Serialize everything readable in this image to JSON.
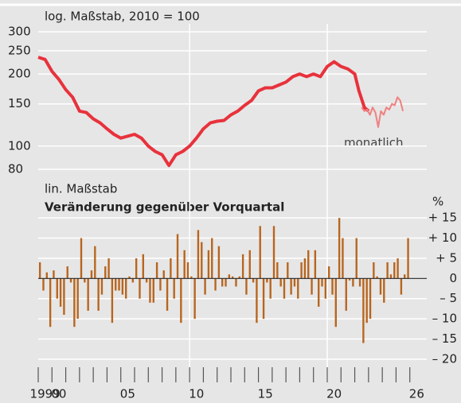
{
  "chart_data": [
    {
      "type": "line",
      "title": "log. Maßstab, 2010 = 100",
      "log": true,
      "grid": true,
      "ylim": [
        80,
        300
      ],
      "yticks": [
        300,
        250,
        200,
        150,
        100,
        80
      ],
      "xlim": [
        1999,
        2027
      ],
      "annotation": "monatlich",
      "series": [
        {
          "color": "#e8323c",
          "width": 4,
          "x": [
            1999,
            1999.5,
            2000,
            2000.5,
            2001,
            2001.5,
            2002,
            2002.5,
            2003,
            2003.5,
            2004,
            2004.5,
            2005,
            2005.5,
            2006,
            2006.5,
            2007,
            2007.5,
            2008,
            2008.5,
            2009,
            2009.5,
            2010,
            2010.5,
            2011,
            2011.5,
            2012,
            2012.5,
            2013,
            2013.5,
            2014,
            2014.5,
            2015,
            2015.5,
            2016,
            2016.5,
            2017,
            2017.5,
            2018,
            2018.5,
            2019,
            2019.5,
            2020,
            2020.5,
            2021,
            2021.5,
            2022,
            2022.3,
            2022.7,
            2023
          ],
          "values": [
            235,
            230,
            205,
            190,
            172,
            160,
            140,
            138,
            130,
            125,
            118,
            112,
            108,
            110,
            112,
            108,
            100,
            95,
            92,
            83,
            92,
            95,
            100,
            108,
            118,
            125,
            127,
            128,
            135,
            140,
            148,
            155,
            170,
            175,
            175,
            180,
            185,
            195,
            200,
            195,
            200,
            195,
            215,
            225,
            215,
            210,
            200,
            170,
            145,
            140
          ]
        },
        {
          "name": "monatlich",
          "color": "#f08080",
          "width": 2,
          "x": [
            2022.5,
            2022.7,
            2022.9,
            2023.1,
            2023.3,
            2023.5,
            2023.7,
            2023.9,
            2024.1,
            2024.3,
            2024.5,
            2024.7,
            2024.9,
            2025.1,
            2025.3,
            2025.5
          ],
          "values": [
            145,
            140,
            142,
            135,
            145,
            138,
            120,
            140,
            135,
            145,
            142,
            150,
            148,
            160,
            155,
            140
          ]
        }
      ]
    },
    {
      "type": "bar",
      "title": "Veränderung gegenüber Vorquartal",
      "subtitle": "lin. Maßstab",
      "unit": "%",
      "color": "#b8651e",
      "grid": true,
      "xlim": [
        1999,
        2027
      ],
      "ylim": [
        -22,
        17
      ],
      "yticks": [
        {
          "value": 15,
          "label": "+ 15"
        },
        {
          "value": 10,
          "label": "+ 10"
        },
        {
          "value": 5,
          "label": "+  5"
        },
        0,
        {
          "value": -5,
          "label": "–  5"
        },
        {
          "value": -10,
          "label": "– 10"
        },
        {
          "value": -15,
          "label": "– 15"
        },
        {
          "value": -20,
          "label": "– 20"
        }
      ],
      "xticks": [
        {
          "value": 1999.5,
          "label": "1999"
        },
        {
          "value": 2000.5,
          "label": "00"
        },
        {
          "value": 2005.5,
          "label": "05"
        },
        {
          "value": 2010.5,
          "label": "10"
        },
        {
          "value": 2015.5,
          "label": "15"
        },
        {
          "value": 2020.5,
          "label": "20"
        },
        {
          "value": 2026.5,
          "label": "26"
        }
      ],
      "xminor": [
        1999,
        2000,
        2001,
        2002,
        2003,
        2004,
        2005,
        2006,
        2007,
        2008,
        2009,
        2010,
        2011,
        2012,
        2013,
        2014,
        2015,
        2016,
        2017,
        2018,
        2019,
        2020,
        2021,
        2022,
        2023,
        2024,
        2025,
        2026
      ],
      "vgrid": [
        2010,
        2020
      ],
      "x": [
        1999.125,
        1999.375,
        1999.625,
        1999.875,
        2000.125,
        2000.375,
        2000.625,
        2000.875,
        2001.125,
        2001.375,
        2001.625,
        2001.875,
        2002.125,
        2002.375,
        2002.625,
        2002.875,
        2003.125,
        2003.375,
        2003.625,
        2003.875,
        2004.125,
        2004.375,
        2004.625,
        2004.875,
        2005.125,
        2005.375,
        2005.625,
        2005.875,
        2006.125,
        2006.375,
        2006.625,
        2006.875,
        2007.125,
        2007.375,
        2007.625,
        2007.875,
        2008.125,
        2008.375,
        2008.625,
        2008.875,
        2009.125,
        2009.375,
        2009.625,
        2009.875,
        2010.125,
        2010.375,
        2010.625,
        2010.875,
        2011.125,
        2011.375,
        2011.625,
        2011.875,
        2012.125,
        2012.375,
        2012.625,
        2012.875,
        2013.125,
        2013.375,
        2013.625,
        2013.875,
        2014.125,
        2014.375,
        2014.625,
        2014.875,
        2015.125,
        2015.375,
        2015.625,
        2015.875,
        2016.125,
        2016.375,
        2016.625,
        2016.875,
        2017.125,
        2017.375,
        2017.625,
        2017.875,
        2018.125,
        2018.375,
        2018.625,
        2018.875,
        2019.125,
        2019.375,
        2019.625,
        2019.875,
        2020.125,
        2020.375,
        2020.625,
        2020.875,
        2021.125,
        2021.375,
        2021.625,
        2021.875,
        2022.125,
        2022.375,
        2022.625,
        2022.875,
        2023.125,
        2023.375,
        2023.625,
        2023.875,
        2024.125,
        2024.375,
        2024.625,
        2024.875,
        2025.125,
        2025.375,
        2025.625,
        2025.875
      ],
      "values": [
        4,
        -3,
        1.5,
        -12,
        2,
        -5,
        -7,
        -9,
        3,
        -1,
        -12,
        -10,
        10,
        -1,
        -8,
        2,
        8,
        -8,
        -4,
        3,
        5,
        -11,
        -3,
        -3,
        -4,
        -5,
        0.5,
        -1,
        5,
        -5,
        6,
        -1,
        -6,
        -6,
        4,
        -3,
        2,
        -8,
        5,
        -5,
        11,
        -11,
        7,
        4,
        0.5,
        -10,
        12,
        9,
        -4,
        7,
        10,
        -3,
        8,
        -2,
        -2,
        1,
        0.5,
        -2,
        0.5,
        6,
        -4,
        7,
        -1,
        -11,
        13,
        -10,
        -1,
        -5,
        13,
        4,
        -2,
        -5,
        4,
        -4,
        -2,
        -5,
        4,
        5,
        7,
        -4,
        7,
        -7,
        -2,
        -5,
        3,
        -4,
        -12,
        15,
        10,
        -8,
        -0.5,
        -2,
        10,
        -2,
        -16,
        -11,
        -10,
        4,
        0.5,
        -4,
        -6,
        4,
        1,
        4,
        5,
        -4,
        1,
        10
      ]
    }
  ]
}
